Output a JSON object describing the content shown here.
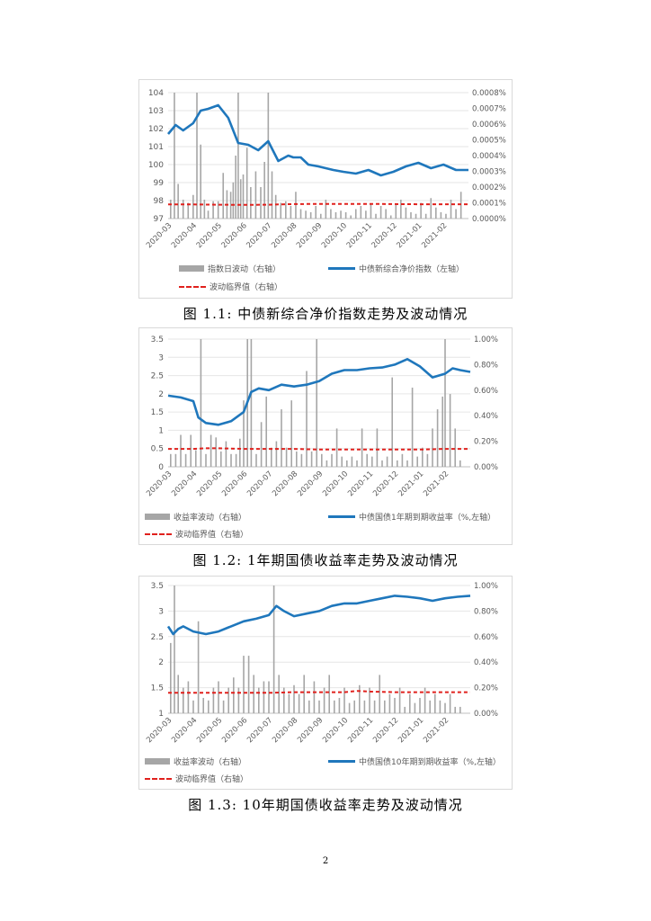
{
  "page_number": "2",
  "chart_data": [
    {
      "type": "bar+line",
      "caption": "图 1.1: 中债新综合净价指数走势及波动情况",
      "x_tick_labels": [
        "2020-03",
        "2020-04",
        "2020-05",
        "2020-06",
        "2020-07",
        "2020-08",
        "2020-09",
        "2020-10",
        "2020-11",
        "2020-12",
        "2021-01",
        "2021-02"
      ],
      "left_axis": {
        "ticks": [
          "97",
          "98",
          "99",
          "100",
          "101",
          "102",
          "103",
          "104"
        ],
        "ylim": [
          97,
          104
        ]
      },
      "right_axis": {
        "ticks": [
          "0.0000%",
          "0.0001%",
          "0.0002%",
          "0.0003%",
          "0.0004%",
          "0.0005%",
          "0.0006%",
          "0.0007%",
          "0.0008%"
        ],
        "ylim": [
          0,
          0.0008
        ]
      },
      "legend": {
        "bar_name": "指数日波动（右轴）",
        "line_name": "中债新综合净价指数（左轴）",
        "dash_name": "波动临界值（右轴）"
      },
      "series": {
        "line": {
          "axis": "left",
          "color": "#1f77bc",
          "x": [
            0,
            0.3,
            0.6,
            1,
            1.3,
            1.6,
            2,
            2.4,
            2.8,
            3.2,
            3.6,
            4,
            4.4,
            4.8,
            5,
            5.3,
            5.6,
            6,
            6.3,
            6.6,
            7,
            7.5,
            8,
            8.5,
            9,
            9.5,
            10,
            10.5,
            11,
            11.5,
            12
          ],
          "y": [
            101.7,
            102.2,
            101.9,
            102.3,
            103.0,
            103.1,
            103.3,
            102.6,
            101.2,
            101.1,
            100.8,
            101.3,
            100.2,
            100.5,
            100.4,
            100.4,
            100.0,
            99.9,
            99.8,
            99.7,
            99.6,
            99.5,
            99.7,
            99.4,
            99.6,
            99.9,
            100.1,
            99.8,
            100.0,
            99.7,
            99.7
          ]
        },
        "threshold": {
          "axis": "right",
          "color": "#e0211d",
          "x": [
            0,
            1,
            2,
            3,
            4,
            5,
            6,
            7,
            8,
            9,
            10,
            11,
            12
          ],
          "y": [
            9e-05,
            9e-05,
            8.8e-05,
            8.7e-05,
            8.8e-05,
            9.2e-05,
            9.3e-05,
            9.3e-05,
            9.3e-05,
            9.2e-05,
            9.1e-05,
            9.1e-05,
            9.1e-05
          ]
        },
        "bars": {
          "axis": "right",
          "color": "#a6a6a6",
          "x": [
            0.1,
            0.25,
            0.4,
            0.6,
            0.8,
            1.0,
            1.15,
            1.3,
            1.45,
            1.6,
            1.8,
            2.0,
            2.2,
            2.35,
            2.5,
            2.6,
            2.7,
            2.8,
            2.9,
            3.0,
            3.15,
            3.3,
            3.5,
            3.7,
            3.85,
            4.0,
            4.15,
            4.3,
            4.5,
            4.7,
            4.9,
            5.1,
            5.3,
            5.5,
            5.7,
            5.9,
            6.1,
            6.3,
            6.5,
            6.7,
            6.9,
            7.1,
            7.3,
            7.5,
            7.7,
            7.9,
            8.1,
            8.3,
            8.5,
            8.7,
            8.9,
            9.1,
            9.3,
            9.5,
            9.7,
            9.9,
            10.1,
            10.3,
            10.5,
            10.7,
            10.9,
            11.1,
            11.3,
            11.5,
            11.7
          ],
          "y": [
            0.00012,
            0.0008,
            0.00022,
            0.00012,
            0.0001,
            0.00015,
            0.0008,
            0.00047,
            0.00012,
            5e-05,
            0.00011,
            0.00011,
            0.00029,
            0.00018,
            0.00017,
            0.00023,
            0.0004,
            0.0008,
            0.00025,
            0.00028,
            0.00045,
            0.0002,
            0.0003,
            0.0002,
            0.00036,
            0.0008,
            0.0003,
            0.00015,
            0.0001,
            0.00011,
            8e-05,
            0.00017,
            6e-05,
            5e-05,
            4e-05,
            8e-05,
            3e-05,
            0.00012,
            6e-05,
            4e-05,
            5e-05,
            4e-05,
            2e-05,
            6e-05,
            8e-05,
            5e-05,
            9e-05,
            3e-05,
            8e-05,
            6e-05,
            2e-05,
            9e-05,
            0.00012,
            7e-05,
            4e-05,
            3e-05,
            0.0001,
            3e-05,
            0.00013,
            7e-05,
            4e-05,
            3e-05,
            0.00012,
            6e-05,
            0.00017
          ]
        }
      }
    },
    {
      "type": "bar+line",
      "caption": "图 1.2: 1年期国债收益率走势及波动情况",
      "x_tick_labels": [
        "2020-03",
        "2020-04",
        "2020-05",
        "2020-06",
        "2020-07",
        "2020-08",
        "2020-09",
        "2020-10",
        "2020-11",
        "2020-12",
        "2021-01",
        "2021-02"
      ],
      "left_axis": {
        "ticks": [
          "0",
          "0.5",
          "1",
          "1.5",
          "2",
          "2.5",
          "3",
          "3.5"
        ],
        "ylim": [
          0,
          3.5
        ]
      },
      "right_axis": {
        "ticks": [
          "0.00%",
          "0.20%",
          "0.40%",
          "0.60%",
          "0.80%",
          "1.00%"
        ],
        "ylim": [
          0,
          1.0
        ]
      },
      "legend": {
        "bar_name": "收益率波动（右轴）",
        "line_name": "中债国债1年期到期收益率（%,左轴）",
        "dash_name": "波动临界值（右轴）"
      },
      "series": {
        "line": {
          "axis": "left",
          "color": "#1f77bc",
          "x": [
            0,
            0.5,
            1,
            1.2,
            1.5,
            2,
            2.5,
            3,
            3.3,
            3.6,
            4,
            4.5,
            5,
            5.5,
            6,
            6.5,
            7,
            7.5,
            8,
            8.5,
            9,
            9.5,
            10,
            10.5,
            11,
            11.3,
            11.6,
            12
          ],
          "y": [
            1.95,
            1.9,
            1.8,
            1.35,
            1.2,
            1.15,
            1.25,
            1.5,
            2.05,
            2.15,
            2.1,
            2.25,
            2.2,
            2.25,
            2.35,
            2.55,
            2.65,
            2.65,
            2.7,
            2.72,
            2.8,
            2.95,
            2.75,
            2.45,
            2.55,
            2.7,
            2.65,
            2.6
          ]
        },
        "threshold": {
          "axis": "right",
          "color": "#e0211d",
          "x": [
            0,
            1,
            1.5,
            2,
            3,
            4,
            5,
            6,
            7,
            8,
            9,
            10,
            11,
            12
          ],
          "y": [
            0.14,
            0.14,
            0.145,
            0.145,
            0.14,
            0.14,
            0.14,
            0.135,
            0.135,
            0.135,
            0.135,
            0.135,
            0.14,
            0.14
          ]
        },
        "bars": {
          "axis": "right",
          "color": "#a6a6a6",
          "x": [
            0.1,
            0.3,
            0.5,
            0.7,
            0.9,
            1.1,
            1.3,
            1.5,
            1.7,
            1.9,
            2.1,
            2.3,
            2.5,
            2.7,
            2.85,
            3.0,
            3.15,
            3.3,
            3.5,
            3.7,
            3.9,
            4.1,
            4.3,
            4.5,
            4.7,
            4.9,
            5.1,
            5.3,
            5.5,
            5.7,
            5.9,
            6.1,
            6.3,
            6.5,
            6.7,
            6.9,
            7.1,
            7.3,
            7.5,
            7.7,
            7.9,
            8.1,
            8.3,
            8.5,
            8.7,
            8.9,
            9.1,
            9.3,
            9.5,
            9.7,
            9.9,
            10.1,
            10.3,
            10.5,
            10.7,
            10.9,
            11.0,
            11.2,
            11.4,
            11.6
          ],
          "y": [
            0.1,
            0.1,
            0.25,
            0.1,
            0.25,
            0.13,
            1.0,
            0.1,
            0.25,
            0.23,
            0.12,
            0.2,
            0.1,
            0.1,
            0.22,
            0.52,
            1.0,
            1.0,
            0.1,
            0.35,
            0.55,
            0.15,
            0.2,
            0.45,
            0.15,
            0.52,
            0.12,
            0.1,
            0.75,
            0.12,
            1.0,
            0.1,
            0.05,
            0.1,
            0.3,
            0.08,
            0.05,
            0.08,
            0.05,
            0.3,
            0.1,
            0.08,
            0.3,
            0.05,
            0.08,
            0.7,
            0.05,
            0.1,
            0.05,
            0.62,
            0.08,
            0.15,
            0.1,
            0.3,
            0.45,
            0.55,
            1.0,
            0.57,
            0.3,
            0.05
          ]
        }
      }
    },
    {
      "type": "bar+line",
      "caption": "图 1.3: 10年期国债收益率走势及波动情况",
      "x_tick_labels": [
        "2020-03",
        "2020-04",
        "2020-05",
        "2020-06",
        "2020-07",
        "2020-08",
        "2020-09",
        "2020-10",
        "2020-11",
        "2020-12",
        "2021-01",
        "2021-02"
      ],
      "left_axis": {
        "ticks": [
          "1",
          "1.5",
          "2",
          "2.5",
          "3",
          "3.5"
        ],
        "ylim": [
          1,
          3.5
        ]
      },
      "right_axis": {
        "ticks": [
          "0.00%",
          "0.20%",
          "0.40%",
          "0.60%",
          "0.80%",
          "1.00%"
        ],
        "ylim": [
          0,
          1.0
        ]
      },
      "legend": {
        "bar_name": "收益率波动（右轴）",
        "line_name": "中债国债10年期到期收益率（%,左轴）",
        "dash_name": "波动临界值（右轴）"
      },
      "series": {
        "line": {
          "axis": "left",
          "color": "#1f77bc",
          "x": [
            0,
            0.2,
            0.4,
            0.6,
            1,
            1.5,
            2,
            2.5,
            3,
            3.5,
            4,
            4.3,
            4.6,
            5,
            5.5,
            6,
            6.5,
            7,
            7.5,
            8,
            8.5,
            9,
            9.5,
            10,
            10.5,
            11,
            11.5,
            12
          ],
          "y": [
            2.7,
            2.55,
            2.65,
            2.7,
            2.6,
            2.55,
            2.6,
            2.7,
            2.8,
            2.85,
            2.92,
            3.1,
            3.0,
            2.9,
            2.95,
            3.0,
            3.1,
            3.15,
            3.15,
            3.2,
            3.25,
            3.3,
            3.28,
            3.25,
            3.2,
            3.25,
            3.28,
            3.3
          ]
        },
        "threshold": {
          "axis": "right",
          "color": "#e0211d",
          "x": [
            0,
            1,
            2,
            3,
            4,
            5,
            6,
            7,
            7.5,
            8,
            9,
            10,
            11,
            12
          ],
          "y": [
            0.16,
            0.16,
            0.16,
            0.16,
            0.16,
            0.165,
            0.165,
            0.165,
            0.175,
            0.17,
            0.165,
            0.165,
            0.165,
            0.165
          ]
        },
        "bars": {
          "axis": "right",
          "color": "#a6a6a6",
          "x": [
            0.1,
            0.25,
            0.4,
            0.6,
            0.8,
            1.0,
            1.2,
            1.4,
            1.6,
            1.8,
            2.0,
            2.2,
            2.4,
            2.6,
            2.8,
            3.0,
            3.2,
            3.4,
            3.6,
            3.8,
            4.0,
            4.2,
            4.4,
            4.6,
            4.8,
            5.0,
            5.2,
            5.4,
            5.6,
            5.8,
            6.0,
            6.2,
            6.4,
            6.6,
            6.8,
            7.0,
            7.2,
            7.4,
            7.6,
            7.8,
            8.0,
            8.2,
            8.4,
            8.6,
            8.8,
            9.0,
            9.2,
            9.4,
            9.6,
            9.8,
            10.0,
            10.2,
            10.4,
            10.6,
            10.8,
            11.0,
            11.2,
            11.4,
            11.6
          ],
          "y": [
            0.55,
            1.0,
            0.3,
            0.2,
            0.25,
            0.1,
            0.72,
            0.12,
            0.1,
            0.2,
            0.25,
            0.1,
            0.2,
            0.28,
            0.2,
            0.45,
            0.45,
            0.3,
            0.2,
            0.25,
            0.25,
            1.0,
            0.3,
            0.2,
            0.15,
            0.22,
            0.15,
            0.3,
            0.1,
            0.25,
            0.1,
            0.2,
            0.3,
            0.1,
            0.12,
            0.2,
            0.08,
            0.1,
            0.22,
            0.1,
            0.2,
            0.1,
            0.3,
            0.1,
            0.15,
            0.12,
            0.2,
            0.05,
            0.15,
            0.08,
            0.12,
            0.2,
            0.1,
            0.15,
            0.1,
            0.08,
            0.15,
            0.05,
            0.05
          ]
        }
      }
    }
  ]
}
